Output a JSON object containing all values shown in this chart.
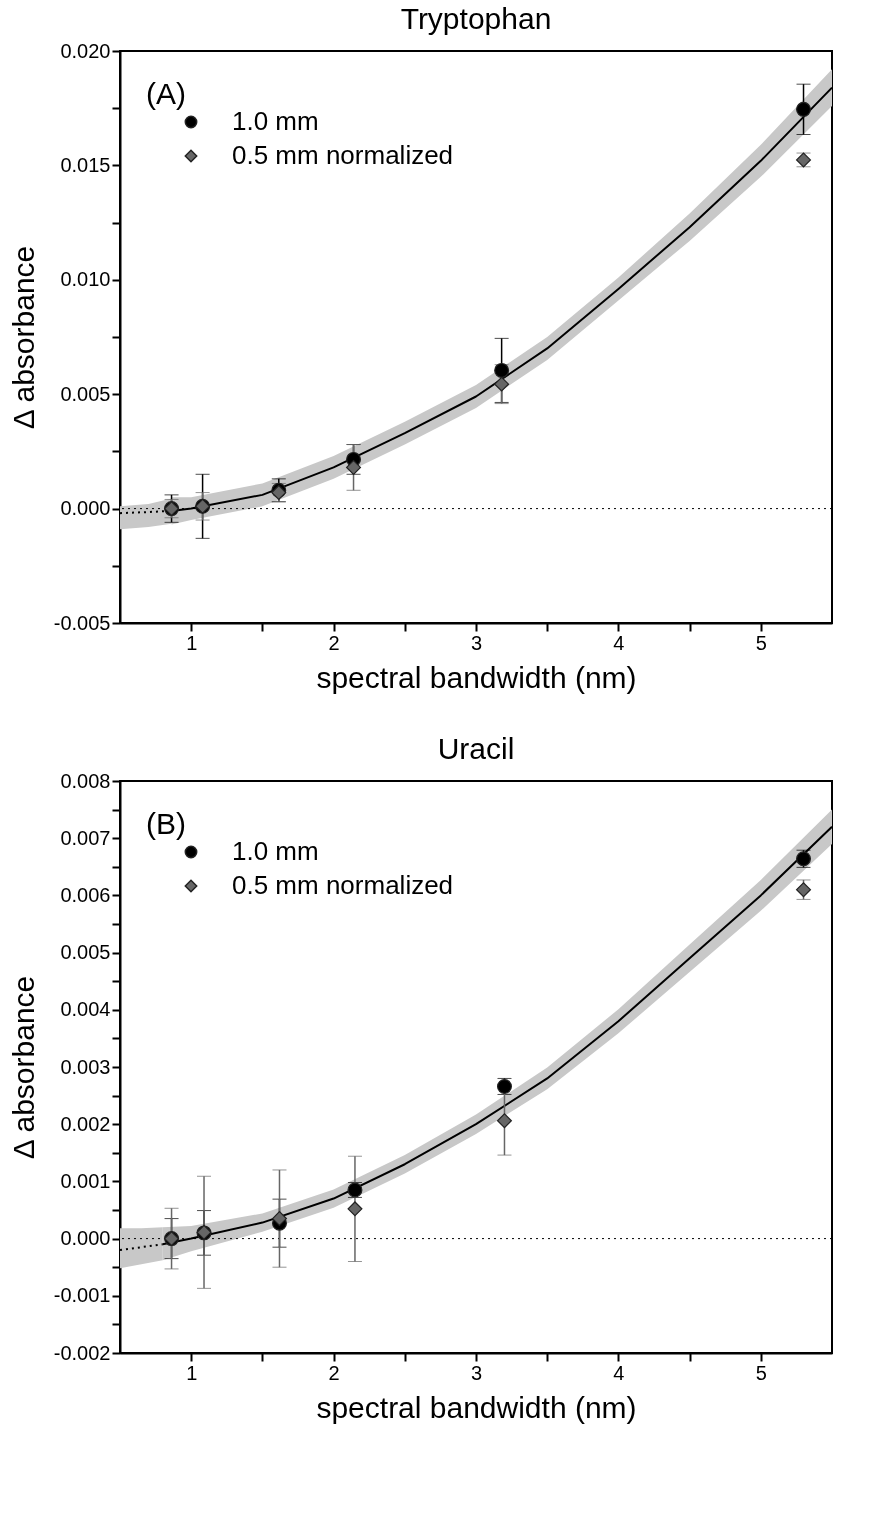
{
  "chart_data": [
    {
      "type": "scatter",
      "title": "Tryptophan",
      "xlabel": "spectral bandwidth (nm)",
      "ylabel": "Δ absorbance",
      "annotations": [
        "(A)"
      ],
      "legend": "top left",
      "grid": false,
      "xlim": [
        0.5,
        5.5
      ],
      "xticks": [
        1,
        {
          "value": 1.5,
          "label": null
        },
        2,
        {
          "value": 2.5,
          "label": null
        },
        3,
        {
          "value": 3.5,
          "label": null
        },
        4,
        {
          "value": 4.5,
          "label": null
        },
        5
      ],
      "ylim": [
        -0.005,
        0.02
      ],
      "yticks": [
        {
          "value": -0.005,
          "label": "-0.005"
        },
        {
          "value": -0.0025,
          "label": null
        },
        {
          "value": 0,
          "label": "0.000"
        },
        {
          "value": 0.0025,
          "label": null
        },
        {
          "value": 0.005,
          "label": "0.005"
        },
        {
          "value": 0.0075,
          "label": null
        },
        {
          "value": 0.01,
          "label": "0.010"
        },
        {
          "value": 0.0125,
          "label": null
        },
        {
          "value": 0.015,
          "label": "0.015"
        },
        {
          "value": 0.0175,
          "label": null
        },
        {
          "value": 0.02,
          "label": "0.020"
        }
      ],
      "ref_lines": [
        {
          "axis": "y",
          "value": 0,
          "line_style": "dotted",
          "color": "#000000"
        }
      ],
      "series": [
        {
          "type": "line",
          "line_style": "dotted",
          "color": "#000000",
          "x": [
            0.5,
            0.7,
            0.862
          ],
          "values": [
            -0.0002,
            -0.00015,
            -0.0001
          ],
          "lower": [
            -0.0009,
            -0.0008,
            -0.00066
          ],
          "upper": [
            0.0001,
            0.0002,
            0.00044
          ]
        },
        {
          "type": "line",
          "line_style": "solid",
          "color": "#000000",
          "x": [
            0.862,
            1,
            1.5,
            2,
            2.5,
            3,
            3.5,
            4,
            4.5,
            5,
            5.5
          ],
          "values": [
            -0.0001,
            0,
            0.0006,
            0.0018,
            0.0033,
            0.0049,
            0.007,
            0.0096,
            0.0123,
            0.0152,
            0.0184
          ],
          "lower": [
            -0.0007,
            -0.0005,
            0.0001,
            0.0013,
            0.0028,
            0.0044,
            0.0065,
            0.0091,
            0.0117,
            0.0145,
            0.0176
          ],
          "upper": [
            0.0005,
            0.0005,
            0.0011,
            0.0023,
            0.0038,
            0.0054,
            0.0075,
            0.0101,
            0.0129,
            0.0159,
            0.0192
          ]
        },
        {
          "name": "1.0 mm",
          "type": "scatter",
          "marker": "circle",
          "color": "#000000",
          "x": [
            0.862,
            1.08,
            1.615,
            2.14,
            3.18,
            5.3
          ],
          "values": [
            0,
            0.0001,
            0.0008,
            0.00215,
            0.00604,
            0.01745
          ],
          "errors": [
            0.0006,
            0.0014,
            0.0005,
            0.00065,
            0.0014,
            0.0011
          ]
        },
        {
          "name": "0.5 mm normalized",
          "type": "scatter",
          "marker": "diamond",
          "color": "#666666",
          "x": [
            0.862,
            1.08,
            1.615,
            2.14,
            3.18,
            5.3
          ],
          "values": [
            0,
            0.0001,
            0.0007,
            0.0018,
            0.00544,
            0.01524
          ],
          "errors": [
            0.0004,
            0.0006,
            0.0004,
            0.001,
            0.00085,
            0.0003
          ]
        }
      ]
    },
    {
      "type": "scatter",
      "title": "Uracil",
      "xlabel": "spectral bandwidth (nm)",
      "ylabel": "Δ absorbance",
      "annotations": [
        "(B)"
      ],
      "legend": "top left",
      "grid": false,
      "xlim": [
        0.5,
        5.5
      ],
      "xticks": [
        1,
        {
          "value": 1.5,
          "label": null
        },
        2,
        {
          "value": 2.5,
          "label": null
        },
        3,
        {
          "value": 3.5,
          "label": null
        },
        4,
        {
          "value": 4.5,
          "label": null
        },
        5
      ],
      "ylim": [
        -0.002,
        0.008
      ],
      "yticks": [
        {
          "value": -0.002,
          "label": "-0.002"
        },
        {
          "value": -0.0015,
          "label": null
        },
        {
          "value": -0.001,
          "label": "-0.001"
        },
        {
          "value": -0.0005,
          "label": null
        },
        {
          "value": 0,
          "label": "0.000"
        },
        {
          "value": 0.0005,
          "label": null
        },
        {
          "value": 0.001,
          "label": "0.001"
        },
        {
          "value": 0.0015,
          "label": null
        },
        {
          "value": 0.002,
          "label": "0.002"
        },
        {
          "value": 0.0025,
          "label": null
        },
        {
          "value": 0.003,
          "label": "0.003"
        },
        {
          "value": 0.0035,
          "label": null
        },
        {
          "value": 0.004,
          "label": "0.004"
        },
        {
          "value": 0.0045,
          "label": null
        },
        {
          "value": 0.005,
          "label": "0.005"
        },
        {
          "value": 0.0055,
          "label": null
        },
        {
          "value": 0.006,
          "label": "0.006"
        },
        {
          "value": 0.0065,
          "label": null
        },
        {
          "value": 0.007,
          "label": "0.007"
        },
        {
          "value": 0.0075,
          "label": null
        },
        {
          "value": 0.008,
          "label": "0.008"
        }
      ],
      "ref_lines": [
        {
          "axis": "y",
          "value": 0,
          "line_style": "dotted",
          "color": "#000000"
        }
      ],
      "series": [
        {
          "type": "line",
          "line_style": "dotted",
          "color": "#000000",
          "x": [
            0.5,
            0.65,
            0.8
          ],
          "values": [
            -0.0002,
            -0.00015,
            -0.0001
          ],
          "lower": [
            -0.00052,
            -0.00045,
            -0.00038
          ],
          "upper": [
            0.00018,
            0.00018,
            0.0002
          ]
        },
        {
          "type": "line",
          "line_style": "solid",
          "color": "#000000",
          "x": [
            0.8,
            1,
            1.5,
            2,
            2.5,
            3,
            3.5,
            4,
            4.5,
            5,
            5.5
          ],
          "values": [
            -0.0001,
            0,
            0.00028,
            0.0007,
            0.0013,
            0.002,
            0.0028,
            0.0038,
            0.0049,
            0.006,
            0.0072
          ],
          "lower": [
            -0.00038,
            -0.00022,
            0.00012,
            0.00054,
            0.00114,
            0.00183,
            0.00261,
            0.00359,
            0.00466,
            0.00573,
            0.0069
          ],
          "upper": [
            0.0002,
            0.00022,
            0.00044,
            0.00086,
            0.00146,
            0.00217,
            0.00299,
            0.00401,
            0.00514,
            0.00627,
            0.0075
          ]
        },
        {
          "name": "1.0 mm",
          "type": "scatter",
          "marker": "circle",
          "color": "#000000",
          "x": [
            0.862,
            1.09,
            1.62,
            2.15,
            3.2,
            5.3
          ],
          "values": [
            0,
            0.0001,
            0.00027,
            0.00085,
            0.00266,
            0.00664
          ],
          "errors": [
            0.00035,
            0.00039,
            0.00042,
            0.00013,
            0.00014,
            0.00015
          ]
        },
        {
          "name": "0.5 mm normalized",
          "type": "scatter",
          "marker": "diamond",
          "color": "#666666",
          "x": [
            0.862,
            1.09,
            1.62,
            2.15,
            3.2,
            5.3
          ],
          "values": [
            0,
            0.00011,
            0.00035,
            0.00052,
            0.00206,
            0.0061
          ],
          "errors": [
            0.00053,
            0.00098,
            0.00085,
            0.00092,
            0.0006,
            0.00017
          ]
        }
      ]
    }
  ]
}
